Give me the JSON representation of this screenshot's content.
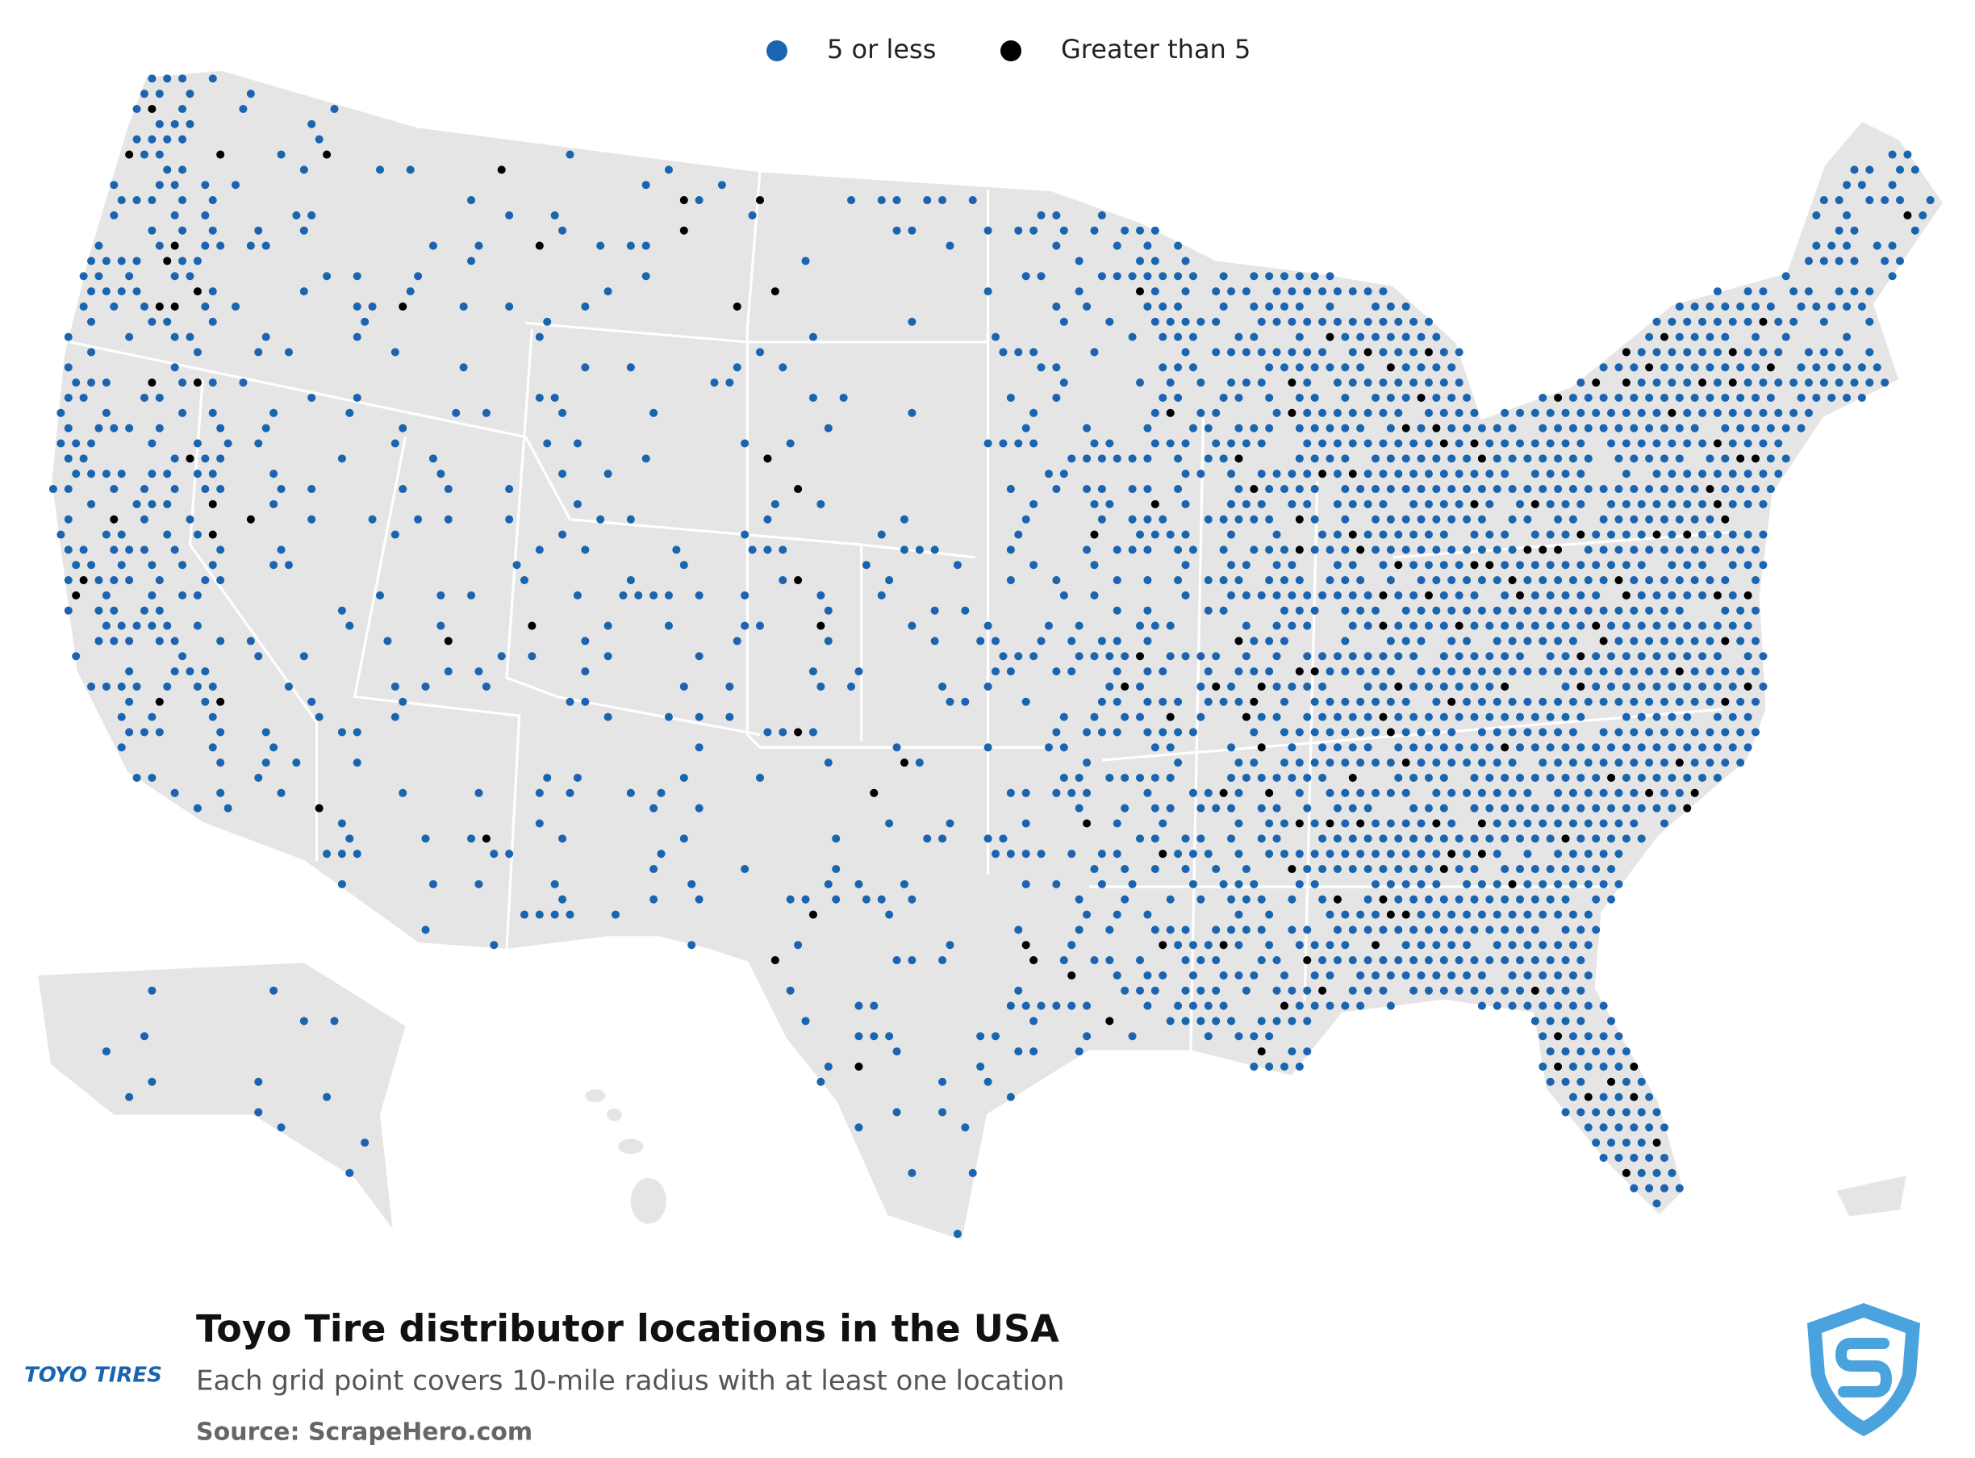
{
  "legend": {
    "items": [
      {
        "label": "5 or less",
        "color": "#1a64b0"
      },
      {
        "label": "Greater than 5",
        "color": "#000000"
      }
    ]
  },
  "footer": {
    "title": "Toyo Tire distributor locations in the USA",
    "subtitle": "Each grid point covers 10-mile radius with at least one location",
    "source": "Source: ScrapeHero.com",
    "brand": "TOYO TIRES"
  }
}
